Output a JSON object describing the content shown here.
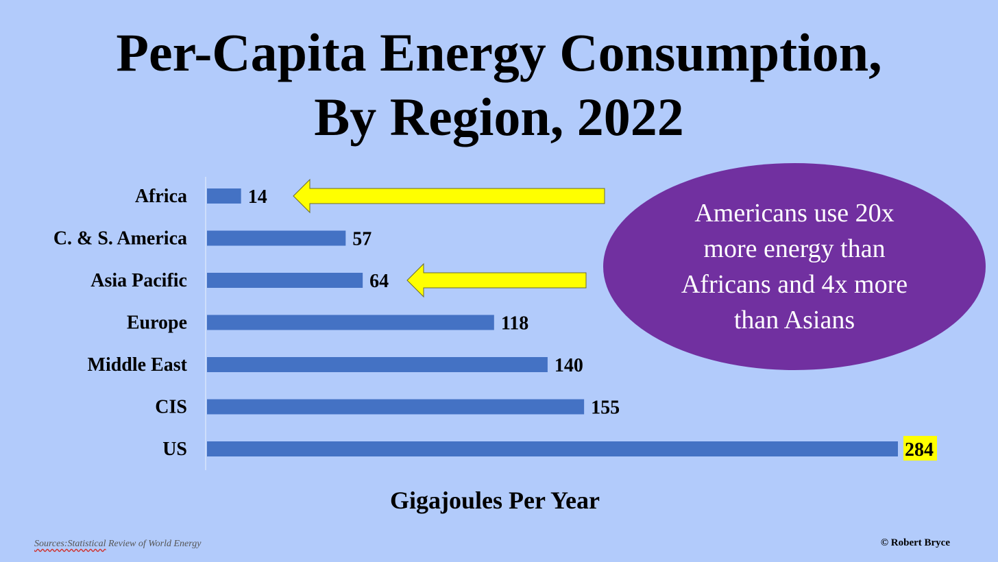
{
  "title_line1": "Per-Capita Energy Consumption,",
  "title_line2": "By Region, 2022",
  "chart_data": {
    "type": "bar",
    "orientation": "horizontal",
    "categories": [
      "Africa",
      "C. & S. America",
      "Asia Pacific",
      "Europe",
      "Middle East",
      "CIS",
      "US"
    ],
    "values": [
      14,
      57,
      64,
      118,
      140,
      155,
      284
    ],
    "xlabel": "Gigajoules Per Year",
    "xlim": [
      0,
      284
    ],
    "grid": false,
    "bar_color": "#4472c4",
    "highlight": {
      "category": "US",
      "label_background": "#ffff00"
    },
    "arrows": [
      {
        "points_to": "Africa",
        "color": "#ffff00"
      },
      {
        "points_to": "Asia Pacific",
        "color": "#ffff00"
      }
    ]
  },
  "callout": {
    "text": "Americans use  20x more energy than Africans and 4x more than Asians",
    "color": "#7130a0"
  },
  "source": {
    "prefix": "Sources:Statistical",
    "rest": " Review of World Energy"
  },
  "copyright": "© Robert Bryce"
}
